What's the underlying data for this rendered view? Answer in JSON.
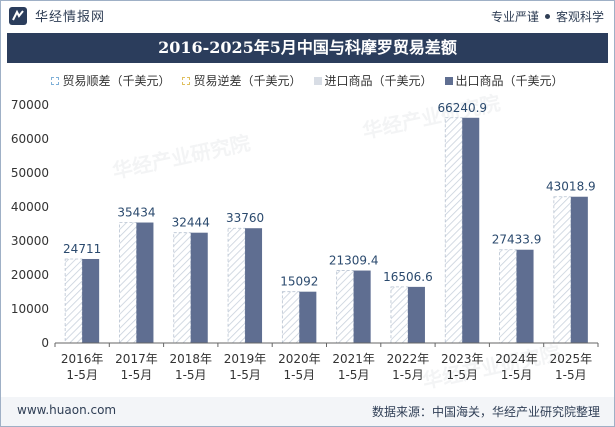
{
  "header": {
    "brand_name": "华经情报网",
    "right_tag_1": "专业严谨",
    "right_tag_2": "客观科学"
  },
  "colors": {
    "title_bg": "#2b3d5c",
    "import_bar_fill": "#ffffff",
    "import_bar_hatch": "#c8d1dc",
    "export_bar": "#5f6e91",
    "value_label": "#2b4a6e"
  },
  "chart_data": {
    "type": "bar",
    "title": "2016-2025年5月中国与科摩罗贸易差额",
    "legend": [
      "贸易顺差（千美元）",
      "贸易逆差（千美元）",
      "进口商品（千美元）",
      "出口商品（千美元）"
    ],
    "categories": [
      "2016年\n1-5月",
      "2017年\n1-5月",
      "2018年\n1-5月",
      "2019年\n1-5月",
      "2020年\n1-5月",
      "2021年\n1-5月",
      "2022年\n1-5月",
      "2023年\n1-5月",
      "2024年\n1-5月",
      "2025年\n1-5月"
    ],
    "category_line1": [
      "2016年",
      "2017年",
      "2018年",
      "2019年",
      "2020年",
      "2021年",
      "2022年",
      "2023年",
      "2024年",
      "2025年"
    ],
    "category_line2": [
      "1-5月",
      "1-5月",
      "1-5月",
      "1-5月",
      "1-5月",
      "1-5月",
      "1-5月",
      "1-5月",
      "1-5月",
      "1-5月"
    ],
    "series": [
      {
        "name": "贸易顺差（千美元）",
        "values": [
          24711,
          35434,
          32444,
          33760,
          15092,
          21309.4,
          16506.6,
          66240.9,
          27433.9,
          43018.9
        ]
      },
      {
        "name": "进口商品（千美元）",
        "values": [
          0,
          0,
          0,
          0,
          0,
          0,
          0,
          0,
          0,
          0
        ]
      },
      {
        "name": "出口商品（千美元）",
        "values": [
          24711,
          35434,
          32444,
          33760,
          15092,
          21309.4,
          16506.6,
          66240.9,
          27433.9,
          43018.9
        ]
      }
    ],
    "data_labels": [
      "24711",
      "35434",
      "32444",
      "33760",
      "15092",
      "21309.4",
      "16506.6",
      "66240.9",
      "27433.9",
      "43018.9"
    ],
    "ylim": [
      0,
      70000
    ],
    "yticks": [
      0,
      10000,
      20000,
      30000,
      40000,
      50000,
      60000,
      70000
    ],
    "ytick_labels": [
      "0",
      "10000",
      "20000",
      "30000",
      "40000",
      "50000",
      "60000",
      "70000"
    ],
    "grid": false,
    "legend_position": "top"
  },
  "footer": {
    "website": "www.huaon.com",
    "source": "数据来源：中国海关，华经产业研究院整理"
  },
  "watermark": "华经产业研究院"
}
